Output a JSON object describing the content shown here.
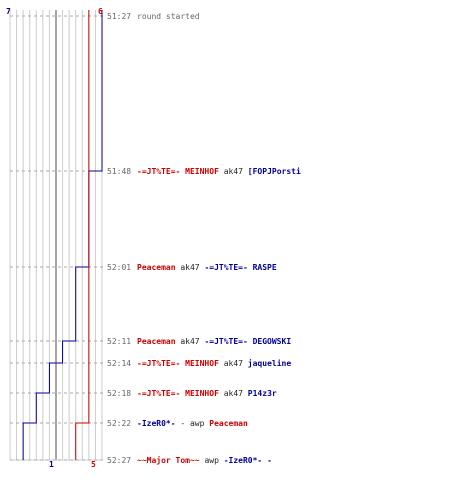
{
  "colors": {
    "team_blue": "#000099",
    "team_red": "#cc0000",
    "grid": "#cccccc",
    "grid_mid": "#888888",
    "guide_dash": "#aaaaaa",
    "time": "#666666"
  },
  "scores": {
    "start_blue": "7",
    "start_red": "6",
    "end_blue": "1",
    "end_red": "5"
  },
  "events": [
    {
      "time": "51:27",
      "parts": [
        {
          "text": "round started",
          "style": "grey"
        }
      ]
    },
    {
      "time": "51:48",
      "parts": [
        {
          "text": "-=JT%TE=- MEINHOF",
          "style": "red"
        },
        {
          "text": " ak47 ",
          "style": "weapon"
        },
        {
          "text": "[FOPJPorsti",
          "style": "blue"
        }
      ]
    },
    {
      "time": "52:01",
      "parts": [
        {
          "text": "Peaceman",
          "style": "red"
        },
        {
          "text": " ak47 ",
          "style": "weapon"
        },
        {
          "text": "-=JT%TE=- RASPE",
          "style": "blue"
        }
      ]
    },
    {
      "time": "52:11",
      "parts": [
        {
          "text": "Peaceman",
          "style": "red"
        },
        {
          "text": " ak47 ",
          "style": "weapon"
        },
        {
          "text": "-=JT%TE=- DEGOWSKI",
          "style": "blue"
        }
      ]
    },
    {
      "time": "52:14",
      "parts": [
        {
          "text": "-=JT%TE=- MEINHOF",
          "style": "red"
        },
        {
          "text": " ak47 ",
          "style": "weapon"
        },
        {
          "text": "jaqueline",
          "style": "blue"
        }
      ]
    },
    {
      "time": "52:18",
      "parts": [
        {
          "text": "-=JT%TE=- MEINHOF",
          "style": "red"
        },
        {
          "text": " ak47 ",
          "style": "weapon"
        },
        {
          "text": "P14z3r",
          "style": "blue"
        }
      ]
    },
    {
      "time": "52:22",
      "parts": [
        {
          "text": "-IzeR0*-",
          "style": "blue"
        },
        {
          "text": " - awp ",
          "style": "weapon"
        },
        {
          "text": "Peaceman",
          "style": "red"
        }
      ]
    },
    {
      "time": "52:27",
      "parts": [
        {
          "text": "~~Major Tom~~",
          "style": "red"
        },
        {
          "text": " awp ",
          "style": "weapon"
        },
        {
          "text": "-IzeR0*- -",
          "style": "blue"
        }
      ]
    }
  ],
  "chart_data": {
    "type": "line",
    "x": [
      "51:27",
      "51:48",
      "52:01",
      "52:11",
      "52:14",
      "52:18",
      "52:22",
      "52:27"
    ],
    "series": [
      {
        "values": [
          7,
          6,
          5,
          4,
          3,
          2,
          1,
          1
        ],
        "color": "#000099"
      },
      {
        "values": [
          6,
          6,
          6,
          6,
          6,
          6,
          5,
          5
        ],
        "color": "#cc0000"
      }
    ],
    "ylim": [
      0,
      7
    ],
    "grid": true,
    "title": "",
    "xlabel": "",
    "ylabel": ""
  }
}
